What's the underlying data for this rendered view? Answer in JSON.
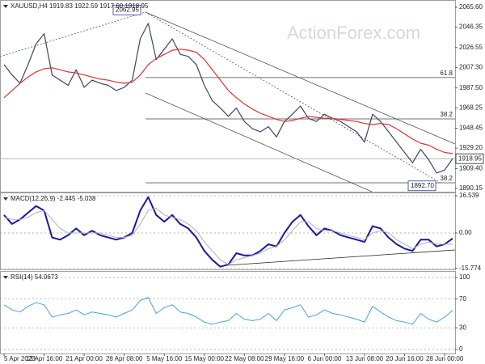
{
  "chart_data": [
    {
      "type": "line",
      "title": "XAUUSD,H4  1919.83 1922.59 1917.60 1918.95",
      "watermark": "ActionForex.com",
      "ylim": [
        1887,
        2072.6
      ],
      "yticks": [
        {
          "value": 2065.6,
          "label": "2065.60"
        },
        2046.35,
        2026.55,
        {
          "value": 2007.3,
          "label": "2007.30"
        },
        {
          "value": 1987.5,
          "label": "1987.50"
        },
        1968.25,
        1948.45,
        {
          "value": 1929.2,
          "label": "1929.20"
        },
        {
          "value": 1909.4,
          "label": "1909.40"
        },
        1890.15
      ],
      "grid": false,
      "last_price": 1918.95,
      "high": 2062.95,
      "low": {
        "value": 1892.7,
        "label": "1892.70"
      },
      "fib_levels": [
        {
          "value": 1997.5,
          "label": "61.8"
        },
        {
          "value": 1957.5,
          "label": "38.2"
        },
        {
          "value": 1895.6,
          "label": "38.2"
        }
      ],
      "series": [
        {
          "name": "XAUUSD",
          "color": "#3b4660",
          "width": 1.2,
          "values": [
            2010,
            2000,
            1992,
            2010,
            2030,
            2040,
            2000,
            1995,
            1990,
            2005,
            1988,
            1995,
            1992,
            1990,
            1985,
            1988,
            1995,
            2035,
            2050,
            2015,
            2025,
            2035,
            2020,
            2018,
            2010,
            1990,
            1975,
            1968,
            1960,
            1968,
            1955,
            1948,
            1945,
            1950,
            1940,
            1955,
            1962,
            1970,
            1958,
            1955,
            1962,
            1958,
            1955,
            1950,
            1945,
            1935,
            1962,
            1955,
            1945,
            1935,
            1925,
            1915,
            1928,
            1918,
            1905,
            1908,
            1919
          ]
        },
        {
          "name": "MA",
          "color": "#e03030",
          "width": 1.2,
          "values": [
            1978,
            1985,
            1992,
            1998,
            2003,
            2006,
            2007,
            2005,
            2003,
            2002,
            2000,
            1998,
            1996,
            1995,
            1993,
            1992,
            1993,
            2000,
            2010,
            2016,
            2020,
            2024,
            2025,
            2024,
            2022,
            2015,
            2005,
            1995,
            1985,
            1978,
            1972,
            1967,
            1963,
            1960,
            1957,
            1955,
            1956,
            1958,
            1960,
            1959,
            1958,
            1958,
            1957,
            1956,
            1955,
            1953,
            1952,
            1953,
            1952,
            1948,
            1943,
            1938,
            1934,
            1932,
            1928,
            1925,
            1924
          ]
        }
      ]
    },
    {
      "type": "line",
      "title": "MACD(12,26,9) -2.445 -5.038",
      "ylim": [
        -16.2,
        18
      ],
      "yticks": [
        16.539,
        {
          "value": 0,
          "label": "0.00"
        },
        -15.774
      ],
      "grid": true,
      "series": [
        {
          "name": "MACD",
          "color": "#1a1a9a",
          "width": 2,
          "values": [
            8,
            4,
            6,
            9,
            12,
            10,
            -2,
            -3,
            -1,
            2,
            -1,
            1,
            -1,
            -2,
            -3,
            -2,
            0,
            10,
            16,
            8,
            5,
            8,
            4,
            2,
            -2,
            -8,
            -12,
            -15,
            -14,
            -9,
            -10,
            -10,
            -8,
            -5,
            -6,
            0,
            5,
            8,
            3,
            -1,
            2,
            1,
            -1,
            -2,
            -3,
            -4,
            3,
            2,
            -2,
            -5,
            -7,
            -8,
            -3,
            -3,
            -6,
            -5,
            -2.445
          ]
        },
        {
          "name": "Signal",
          "color": "#b0b0b0",
          "width": 1,
          "values": [
            7,
            6,
            6,
            7,
            9,
            10,
            6,
            2,
            0,
            0,
            0,
            0,
            0,
            -1,
            -2,
            -2,
            -1,
            4,
            10,
            11,
            8,
            7,
            6,
            4,
            1,
            -4,
            -8,
            -12,
            -14,
            -12,
            -11,
            -10,
            -9,
            -7,
            -6,
            -3,
            1,
            5,
            5,
            2,
            1,
            1,
            0,
            -1,
            -2,
            -3,
            0,
            1,
            0,
            -3,
            -5,
            -7,
            -5,
            -4,
            -5,
            -5,
            -5.038
          ]
        }
      ]
    },
    {
      "type": "line",
      "title": "RSI(14) 54.0673",
      "ylim": [
        -5.6,
        109
      ],
      "yticks": [
        100,
        70,
        30,
        0
      ],
      "grid": true,
      "categories": [
        "5 Apr 2023",
        null,
        null,
        null,
        null,
        "13 Apr 16:00",
        null,
        null,
        null,
        null,
        "21 Apr 00:00",
        null,
        null,
        null,
        null,
        "28 Apr 08:00",
        null,
        null,
        null,
        null,
        "5 May 16:00",
        null,
        null,
        null,
        null,
        "15 May 00:00",
        null,
        null,
        null,
        null,
        "22 May 08:00",
        null,
        null,
        null,
        null,
        "29 May 16:00",
        null,
        null,
        null,
        null,
        "6 Jun 00:00",
        null,
        null,
        null,
        null,
        "13 Jun 08:00",
        null,
        null,
        null,
        null,
        "20 Jun 16:00",
        null,
        null,
        null,
        null,
        "28 Jun 00:00",
        null
      ],
      "series": [
        {
          "name": "RSI",
          "color": "#4aa0e0",
          "width": 1,
          "values": [
            62,
            55,
            52,
            60,
            65,
            62,
            45,
            48,
            50,
            55,
            48,
            52,
            50,
            48,
            45,
            50,
            55,
            68,
            72,
            50,
            58,
            62,
            52,
            50,
            45,
            38,
            35,
            38,
            40,
            50,
            42,
            40,
            42,
            50,
            40,
            55,
            58,
            62,
            45,
            48,
            55,
            50,
            48,
            45,
            42,
            38,
            60,
            52,
            45,
            40,
            38,
            35,
            50,
            42,
            38,
            45,
            54.0673
          ]
        }
      ]
    }
  ]
}
